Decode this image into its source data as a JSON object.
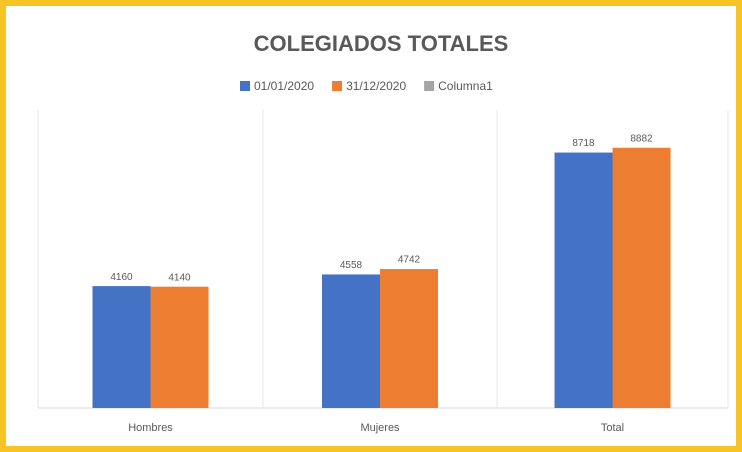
{
  "chart_data": {
    "type": "bar",
    "title": "COLEGIADOS TOTALES",
    "categories": [
      "Hombres",
      "Mujeres",
      "Total"
    ],
    "series": [
      {
        "name": "01/01/2020",
        "color": "#4472c4",
        "values": [
          4160,
          4558,
          8718
        ]
      },
      {
        "name": "31/12/2020",
        "color": "#ed7d31",
        "values": [
          4140,
          4742,
          8882
        ]
      },
      {
        "name": "Columna1",
        "color": "#a5a5a5",
        "values": [
          null,
          null,
          null
        ]
      }
    ],
    "ylim": [
      0,
      10000
    ],
    "legend": "top"
  }
}
